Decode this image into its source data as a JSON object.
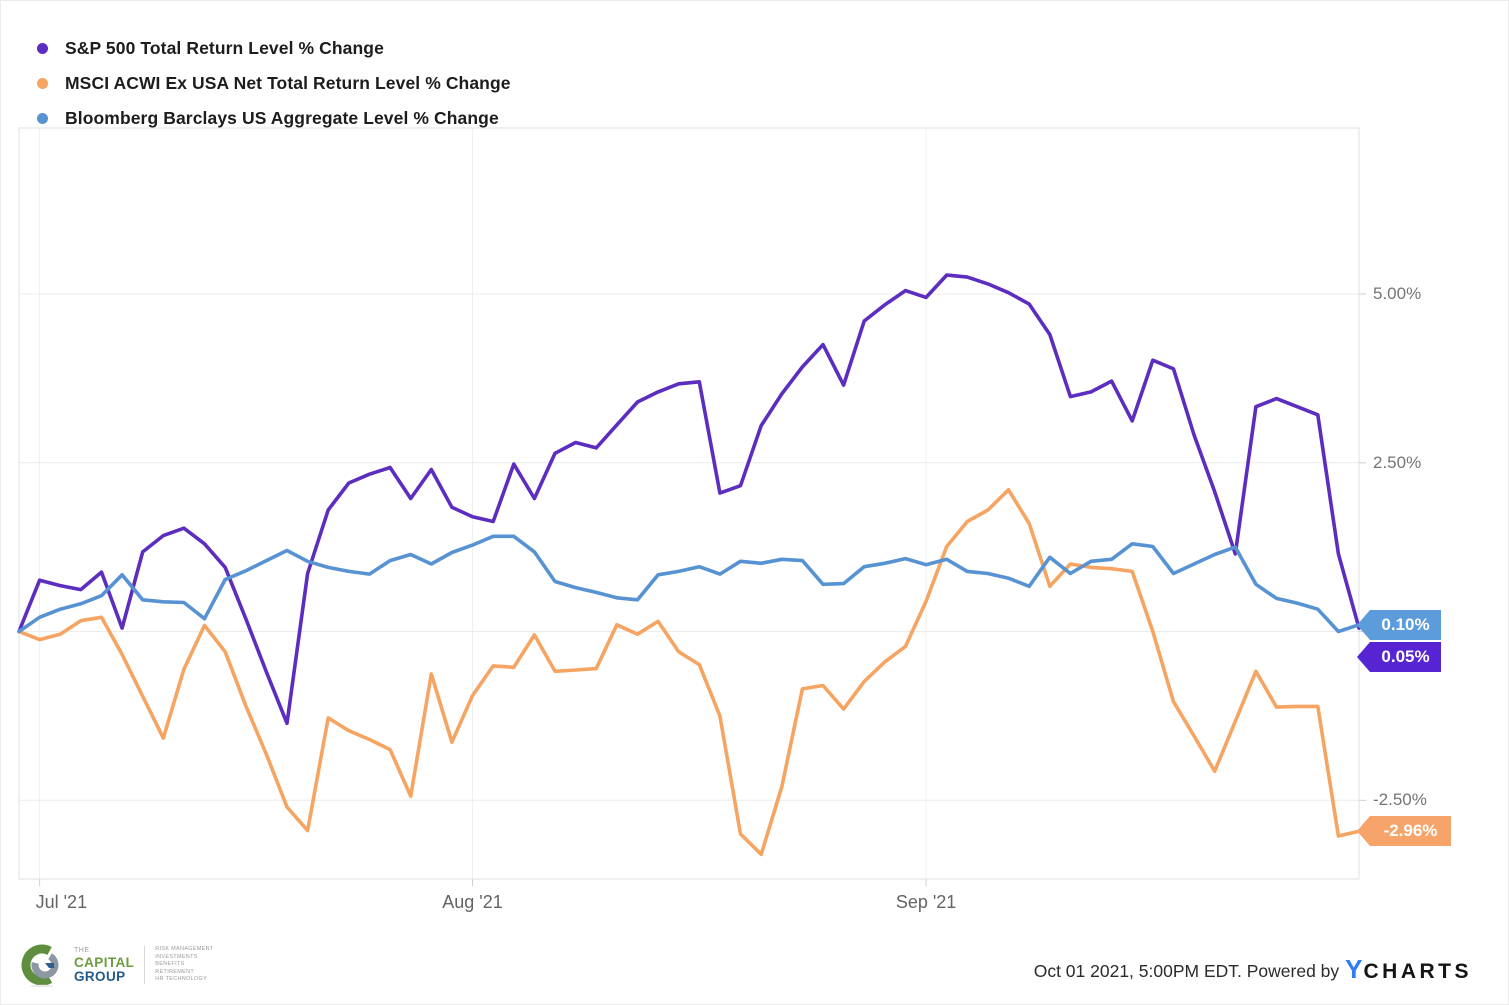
{
  "legend": {
    "items": [
      {
        "label": "S&P 500 Total Return Level % Change"
      },
      {
        "label": "MSCI ACWI Ex USA Net Total Return Level % Change"
      },
      {
        "label": "Bloomberg Barclays US Aggregate Level % Change"
      }
    ]
  },
  "chart_data": {
    "type": "line",
    "title": "",
    "x_description": "Daily cumulative % change, baseline 0% at Jun 30 2021 close; 66 trading days from Jun 30 2021 through Oct 1 2021",
    "x_axis": {
      "tick_labels": [
        {
          "day_index": 1,
          "label": "Jul '21"
        },
        {
          "day_index": 22,
          "label": "Aug '21"
        },
        {
          "day_index": 44,
          "label": "Sep '21"
        }
      ]
    },
    "y_axis": {
      "gridline_values": [
        5.0,
        2.5,
        0.0,
        -2.5
      ],
      "tick_labels": [
        {
          "value": 5.0,
          "label": "5.00%"
        },
        {
          "value": 2.5,
          "label": "2.50%"
        },
        {
          "value": -2.5,
          "label": "-2.50%"
        }
      ],
      "ylim": [
        -3.67,
        7.46
      ],
      "note": "0.00% tick label hidden behind end-value tags"
    },
    "series": [
      {
        "id": "sp500",
        "name": "S&P 500 Total Return Level % Change",
        "color": "#5c2dbe",
        "tag_color": "#5724d4",
        "end_label": "0.05%",
        "values": [
          0.0,
          0.76,
          0.68,
          0.62,
          0.88,
          0.05,
          1.18,
          1.42,
          1.53,
          1.3,
          0.95,
          0.19,
          -0.6,
          -1.36,
          0.86,
          1.8,
          2.2,
          2.33,
          2.43,
          1.97,
          2.4,
          1.84,
          1.7,
          1.63,
          2.48,
          1.97,
          2.64,
          2.8,
          2.72,
          3.06,
          3.4,
          3.55,
          3.67,
          3.7,
          2.05,
          2.16,
          3.05,
          3.52,
          3.92,
          4.25,
          3.65,
          4.6,
          4.84,
          5.05,
          4.95,
          5.28,
          5.25,
          5.15,
          5.02,
          4.85,
          4.4,
          3.48,
          3.55,
          3.71,
          3.12,
          4.02,
          3.89,
          2.91,
          2.07,
          1.15,
          3.33,
          3.45,
          3.33,
          3.21,
          1.15,
          0.05
        ]
      },
      {
        "id": "msci-acwi-ex-usa",
        "name": "MSCI ACWI Ex USA Net Total Return Level % Change",
        "color": "#f6a462",
        "tag_color": "#f6a46a",
        "end_label": "-2.96%",
        "values": [
          0.0,
          -0.12,
          -0.04,
          0.16,
          0.21,
          -0.34,
          -0.96,
          -1.58,
          -0.56,
          0.09,
          -0.3,
          -1.1,
          -1.82,
          -2.6,
          -2.95,
          -1.28,
          -1.47,
          -1.6,
          -1.75,
          -2.44,
          -0.63,
          -1.64,
          -0.95,
          -0.51,
          -0.53,
          -0.05,
          -0.59,
          -0.57,
          -0.55,
          0.1,
          -0.04,
          0.15,
          -0.3,
          -0.49,
          -1.25,
          -3.0,
          -3.3,
          -2.3,
          -0.85,
          -0.8,
          -1.15,
          -0.74,
          -0.45,
          -0.22,
          0.45,
          1.26,
          1.63,
          1.8,
          2.1,
          1.6,
          0.67,
          1.0,
          0.95,
          0.93,
          0.89,
          0.0,
          -1.04,
          -1.55,
          -2.07,
          -1.33,
          -0.59,
          -1.12,
          -1.11,
          -1.11,
          -3.03,
          -2.96
        ]
      },
      {
        "id": "bloomberg-us-agg",
        "name": "Bloomberg Barclays US Aggregate Level % Change",
        "color": "#5793d3",
        "tag_color": "#5c9cda",
        "end_label": "0.10%",
        "values": [
          0.0,
          0.21,
          0.33,
          0.41,
          0.53,
          0.84,
          0.47,
          0.44,
          0.43,
          0.19,
          0.77,
          0.9,
          1.05,
          1.2,
          1.04,
          0.95,
          0.89,
          0.85,
          1.05,
          1.14,
          1.0,
          1.17,
          1.28,
          1.41,
          1.41,
          1.18,
          0.74,
          0.65,
          0.58,
          0.5,
          0.47,
          0.84,
          0.89,
          0.96,
          0.85,
          1.04,
          1.01,
          1.07,
          1.05,
          0.7,
          0.71,
          0.96,
          1.01,
          1.08,
          0.99,
          1.07,
          0.89,
          0.86,
          0.79,
          0.67,
          1.1,
          0.86,
          1.04,
          1.07,
          1.3,
          1.26,
          0.86,
          1.0,
          1.14,
          1.25,
          0.7,
          0.49,
          0.42,
          0.33,
          0.0,
          0.1
        ]
      }
    ],
    "legend_position": "top-left",
    "grid": true
  },
  "footer": {
    "timestamp_text": "Oct 01 2021, 5:00PM EDT. Powered by",
    "ycharts_logo_y": "Y",
    "ycharts_logo_rest": "CHARTS"
  },
  "logo": {
    "the": "THE",
    "capital": "CAPITAL",
    "group": "GROUP",
    "services": [
      "RISK MANAGEMENT",
      "INVESTMENTS",
      "BENEFITS",
      "RETIREMENT",
      "HR TECHNOLOGY"
    ]
  }
}
